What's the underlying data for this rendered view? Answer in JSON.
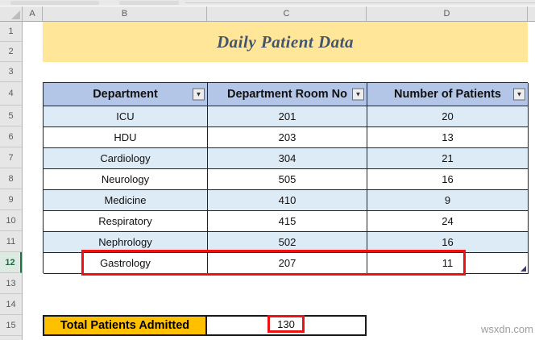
{
  "grid": {
    "column_letters": [
      "A",
      "B",
      "C",
      "D"
    ],
    "row_numbers": [
      "1",
      "2",
      "3",
      "4",
      "5",
      "6",
      "7",
      "8",
      "9",
      "10",
      "11",
      "12",
      "13",
      "14",
      "15"
    ],
    "active_row": "12"
  },
  "title_banner": {
    "text": "Daily Patient Data",
    "bg_color": "#FFE699",
    "text_color": "#44546A"
  },
  "table": {
    "header_bg": "#B4C6E7",
    "band_bg": "#DDEBF7",
    "headers": [
      {
        "label": "Department"
      },
      {
        "label": "Department Room No"
      },
      {
        "label": "Number of Patients"
      }
    ],
    "rows": [
      {
        "department": "ICU",
        "room_no": "201",
        "patients": "20"
      },
      {
        "department": "HDU",
        "room_no": "203",
        "patients": "13"
      },
      {
        "department": "Cardiology",
        "room_no": "304",
        "patients": "21"
      },
      {
        "department": "Neurology",
        "room_no": "505",
        "patients": "16"
      },
      {
        "department": "Medicine",
        "room_no": "410",
        "patients": "9"
      },
      {
        "department": "Respiratory",
        "room_no": "415",
        "patients": "24"
      },
      {
        "department": "Nephrology",
        "room_no": "502",
        "patients": "16"
      },
      {
        "department": "Gastrology",
        "room_no": "207",
        "patients": "11"
      }
    ]
  },
  "summary": {
    "label": "Total Patients Admitted",
    "value": "130",
    "label_bg": "#FFC000"
  },
  "highlight": {
    "color": "#EE1111"
  },
  "icons": {
    "filter_caret": "▼"
  },
  "watermark": "wsxdn.com"
}
